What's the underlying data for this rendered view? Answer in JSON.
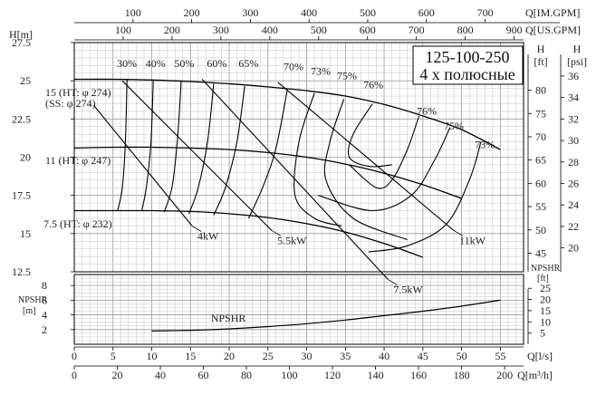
{
  "chart_data": {
    "type": "line",
    "title": "125-100-250",
    "subtitle": "4 х полюсные",
    "axes": {
      "q_ls": {
        "label": "Q[l/s]",
        "ticks": [
          0,
          5,
          10,
          15,
          20,
          25,
          30,
          35,
          40,
          45,
          50,
          55
        ],
        "range": [
          0,
          58
        ]
      },
      "q_m3h": {
        "label": "Q[m³/h]",
        "ticks": [
          0,
          20,
          40,
          60,
          80,
          100,
          120,
          140,
          160,
          180,
          200
        ]
      },
      "q_usgpm": {
        "label": "Q[US.GPM]",
        "ticks": [
          100,
          200,
          300,
          400,
          500,
          600,
          700,
          800,
          900
        ]
      },
      "q_imgpm": {
        "label": "Q[IM.GPM]",
        "ticks": [
          100,
          200,
          300,
          400,
          500,
          600,
          700
        ]
      },
      "head_m": {
        "label": "H[m]",
        "ticks": [
          "12.5",
          "15",
          "17.5",
          "20",
          "22.5",
          "25",
          "27.5"
        ],
        "range": [
          12.5,
          27.5
        ]
      },
      "head_ft": {
        "label_top": "H",
        "label_unit": "[ft]",
        "ticks": [
          45,
          50,
          55,
          60,
          65,
          70,
          75,
          80
        ]
      },
      "head_psi": {
        "label_top": "H",
        "label_unit": "[psi]",
        "ticks": [
          20,
          22,
          24,
          26,
          28,
          30,
          32,
          34,
          36
        ]
      },
      "npshr_m": {
        "label": "NPSHR [m]",
        "label_lines": [
          "NPSHR",
          "[m]"
        ],
        "ticks": [
          2,
          4,
          6,
          8
        ],
        "range": [
          0,
          9.5
        ]
      },
      "npshr_ft": {
        "label": "NPSHR [ft]",
        "label_lines": [
          "NPSHR",
          "[ft]"
        ],
        "ticks": [
          5,
          10,
          15,
          20,
          25
        ]
      }
    },
    "series": [
      {
        "name": "15 (HT: φ 274) (SS: φ 274)",
        "label_lines": [
          "15 (HT: φ 274)",
          "(SS: φ 274)"
        ],
        "x": [
          0,
          5,
          10,
          15,
          20,
          25,
          30,
          35,
          40,
          45,
          50,
          55
        ],
        "y": [
          25.1,
          25.1,
          25.05,
          24.95,
          24.8,
          24.6,
          24.35,
          24.0,
          23.45,
          22.7,
          21.8,
          20.5
        ]
      },
      {
        "name": "11 (HT: φ 247)",
        "x": [
          0,
          5,
          10,
          15,
          20,
          25,
          30,
          35,
          40,
          45,
          50
        ],
        "y": [
          20.6,
          20.65,
          20.65,
          20.6,
          20.5,
          20.3,
          20.0,
          19.55,
          18.95,
          18.2,
          17.3
        ]
      },
      {
        "name": "7.5 (HT: φ 232)",
        "x": [
          0,
          5,
          10,
          15,
          20,
          25,
          30,
          35,
          40,
          45
        ],
        "y": [
          16.5,
          16.5,
          16.5,
          16.45,
          16.3,
          16.05,
          15.65,
          15.1,
          14.35,
          13.45
        ]
      }
    ],
    "power_lines": [
      {
        "label": "4kW",
        "x": [
          2.5,
          15.2
        ],
        "y": [
          23.4,
          15.5
        ]
      },
      {
        "label": "5.5kW",
        "x": [
          6.2,
          25.5
        ],
        "y": [
          25.0,
          15.2
        ]
      },
      {
        "label": "7.5kW",
        "x": [
          16.5,
          40.5
        ],
        "y": [
          25.1,
          12.0
        ]
      },
      {
        "label": "11kW",
        "x": [
          26.3,
          49.0
        ],
        "y": [
          24.9,
          15.2
        ]
      }
    ],
    "efficiency_labels": [
      {
        "label": "30%",
        "x": 6.8,
        "y": 25.9
      },
      {
        "label": "40%",
        "x": 10.5,
        "y": 25.9
      },
      {
        "label": "50%",
        "x": 14.2,
        "y": 25.9
      },
      {
        "label": "60%",
        "x": 18.4,
        "y": 25.9
      },
      {
        "label": "65%",
        "x": 22.5,
        "y": 25.9
      },
      {
        "label": "70%",
        "x": 28.3,
        "y": 25.7
      },
      {
        "label": "73%",
        "x": 31.8,
        "y": 25.4
      },
      {
        "label": "75%",
        "x": 35.2,
        "y": 25.1
      },
      {
        "label": "76%",
        "x": 38.6,
        "y": 24.5
      },
      {
        "label": "76%",
        "x": 45.5,
        "y": 22.8
      },
      {
        "label": "75%",
        "x": 49.0,
        "y": 21.8
      },
      {
        "label": "73%",
        "x": 53.0,
        "y": 20.6
      }
    ],
    "efficiency_curves": [
      {
        "x": [
          6.8,
          6.6,
          6.2,
          5.6
        ],
        "y": [
          25.1,
          21.0,
          18.0,
          16.5
        ]
      },
      {
        "x": [
          10.2,
          9.9,
          9.3,
          8.7
        ],
        "y": [
          25.05,
          21.0,
          18.0,
          16.5
        ]
      },
      {
        "x": [
          13.8,
          13.3,
          12.6,
          11.6
        ],
        "y": [
          24.95,
          21.0,
          18.0,
          16.4
        ]
      },
      {
        "x": [
          18.0,
          17.2,
          16.0,
          14.8
        ],
        "y": [
          24.8,
          21.0,
          18.0,
          16.3
        ]
      },
      {
        "x": [
          22.0,
          21.0,
          19.5,
          18.0
        ],
        "y": [
          24.65,
          21.0,
          18.0,
          16.2
        ]
      },
      {
        "x": [
          27.5,
          26.0,
          24.3,
          22.5
        ],
        "y": [
          24.4,
          20.5,
          18.0,
          16.0
        ]
      },
      {
        "x": [
          31.0,
          29.0,
          28.5,
          31.0,
          34.5
        ],
        "y": [
          24.2,
          21.0,
          17.5,
          16.0,
          15.5
        ]
      },
      {
        "x": [
          34.8,
          33.0,
          32.5,
          36.0,
          43.0
        ],
        "y": [
          23.8,
          21.0,
          18.5,
          16.0,
          14.6
        ]
      },
      {
        "x": [
          38.5,
          36.0,
          35.5,
          38.0,
          41.0
        ],
        "y": [
          23.5,
          21.5,
          20.0,
          19.4,
          19.5
        ]
      },
      {
        "x": [
          44.5,
          43.0,
          41.0,
          39.0,
          35.5
        ],
        "y": [
          22.7,
          20.5,
          18.5,
          18.0,
          19.5
        ]
      },
      {
        "x": [
          48.5,
          46.5,
          43.5,
          38.5,
          31.5
        ],
        "y": [
          21.95,
          19.8,
          17.5,
          16.5,
          17.5
        ]
      },
      {
        "x": [
          52.5,
          51.0,
          48.0,
          43.0,
          38.0
        ],
        "y": [
          21.0,
          18.5,
          15.6,
          14.2,
          13.8
        ]
      }
    ],
    "npshr": {
      "label": "NPSHR",
      "x": [
        10,
        15,
        20,
        25,
        30,
        35,
        40,
        45,
        50,
        55
      ],
      "y": [
        1.8,
        1.9,
        2.1,
        2.4,
        2.8,
        3.3,
        3.9,
        4.5,
        5.2,
        6.0
      ]
    },
    "grid": true
  }
}
